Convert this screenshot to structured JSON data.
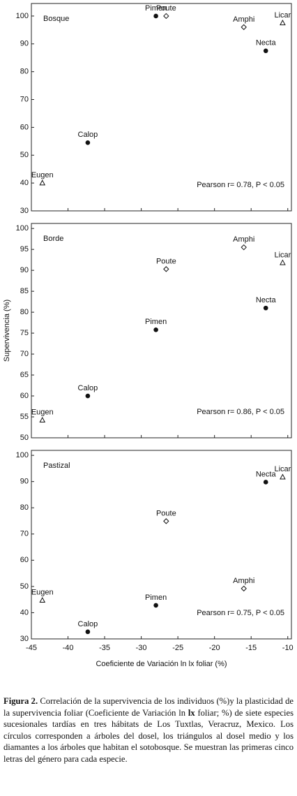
{
  "chart_data": [
    {
      "type": "scatter",
      "panel_label": "Bosque",
      "annotation": "Pearson r= 0.78, P < 0.05",
      "xlim": [
        -45,
        -9.5
      ],
      "xticks": [
        -45,
        -40,
        -35,
        -30,
        -25,
        -20,
        -15,
        -10
      ],
      "show_xtick_labels": false,
      "ylim": [
        30,
        104.5
      ],
      "yticks": [
        30,
        40,
        50,
        60,
        70,
        80,
        90,
        100
      ],
      "points": [
        {
          "label": "Pimen",
          "x": -28,
          "y": 100,
          "marker": "circle"
        },
        {
          "label": "Poute",
          "x": -26.6,
          "y": 100,
          "marker": "diamond"
        },
        {
          "label": "Amphi",
          "x": -16,
          "y": 96,
          "marker": "diamond"
        },
        {
          "label": "Licar",
          "x": -10.7,
          "y": 97.5,
          "marker": "triangle"
        },
        {
          "label": "Necta",
          "x": -13,
          "y": 87.5,
          "marker": "circle"
        },
        {
          "label": "Calop",
          "x": -37.3,
          "y": 54.5,
          "marker": "circle"
        },
        {
          "label": "Eugen",
          "x": -43.5,
          "y": 40,
          "marker": "triangle"
        }
      ]
    },
    {
      "type": "scatter",
      "panel_label": "Borde",
      "annotation": "Pearson r= 0.86, P < 0.05",
      "y_label": "Supervivencia (%)",
      "xlim": [
        -45,
        -9.5
      ],
      "xticks": [
        -45,
        -40,
        -35,
        -30,
        -25,
        -20,
        -15,
        -10
      ],
      "show_xtick_labels": false,
      "ylim": [
        50,
        101.2
      ],
      "yticks": [
        50,
        55,
        60,
        65,
        70,
        75,
        80,
        85,
        90,
        95,
        100
      ],
      "points": [
        {
          "label": "Amphi",
          "x": -16,
          "y": 95.5,
          "marker": "diamond"
        },
        {
          "label": "Licar",
          "x": -10.7,
          "y": 91.8,
          "marker": "triangle"
        },
        {
          "label": "Poute",
          "x": -26.6,
          "y": 90.3,
          "marker": "diamond"
        },
        {
          "label": "Necta",
          "x": -13,
          "y": 81,
          "marker": "circle"
        },
        {
          "label": "Pimen",
          "x": -28,
          "y": 75.8,
          "marker": "circle"
        },
        {
          "label": "Calop",
          "x": -37.3,
          "y": 60,
          "marker": "circle"
        },
        {
          "label": "Eugen",
          "x": -43.5,
          "y": 54.2,
          "marker": "triangle"
        }
      ]
    },
    {
      "type": "scatter",
      "panel_label": "Pastizal",
      "annotation": "Pearson r= 0.75, P < 0.05",
      "x_label": "Coeficiente de Variación ln lx foliar (%)",
      "xlim": [
        -45,
        -9.5
      ],
      "xticks": [
        -45,
        -40,
        -35,
        -30,
        -25,
        -20,
        -15,
        -10
      ],
      "show_xtick_labels": true,
      "ylim": [
        30,
        101.9
      ],
      "yticks": [
        30,
        40,
        50,
        60,
        70,
        80,
        90,
        100
      ],
      "points": [
        {
          "label": "Necta",
          "x": -13,
          "y": 89.8,
          "marker": "circle"
        },
        {
          "label": "Licar",
          "x": -10.7,
          "y": 91.7,
          "marker": "triangle"
        },
        {
          "label": "Poute",
          "x": -26.6,
          "y": 74.9,
          "marker": "diamond"
        },
        {
          "label": "Amphi",
          "x": -16,
          "y": 49.2,
          "marker": "diamond"
        },
        {
          "label": "Pimen",
          "x": -28,
          "y": 42.8,
          "marker": "circle"
        },
        {
          "label": "Eugen",
          "x": -43.5,
          "y": 44.7,
          "marker": "triangle"
        },
        {
          "label": "Calop",
          "x": -37.3,
          "y": 32.7,
          "marker": "circle"
        }
      ]
    }
  ],
  "caption": {
    "label": "Figura 2.",
    "parts": [
      " Correlación de la supervivencia de los individuos (%)y la plasticidad de la supervivencia foliar (Coeficiente de Variación ln ",
      "lx",
      " foliar; %) de siete especies sucesionales tardías en tres hábitats de Los Tuxtlas, Veracruz, Mexico. Los círculos corresponden a árboles del dosel, los triángulos al dosel medio y los diamantes a los árboles que habitan el sotobosque. Se muestran las primeras cinco letras del género para cada especie."
    ]
  }
}
